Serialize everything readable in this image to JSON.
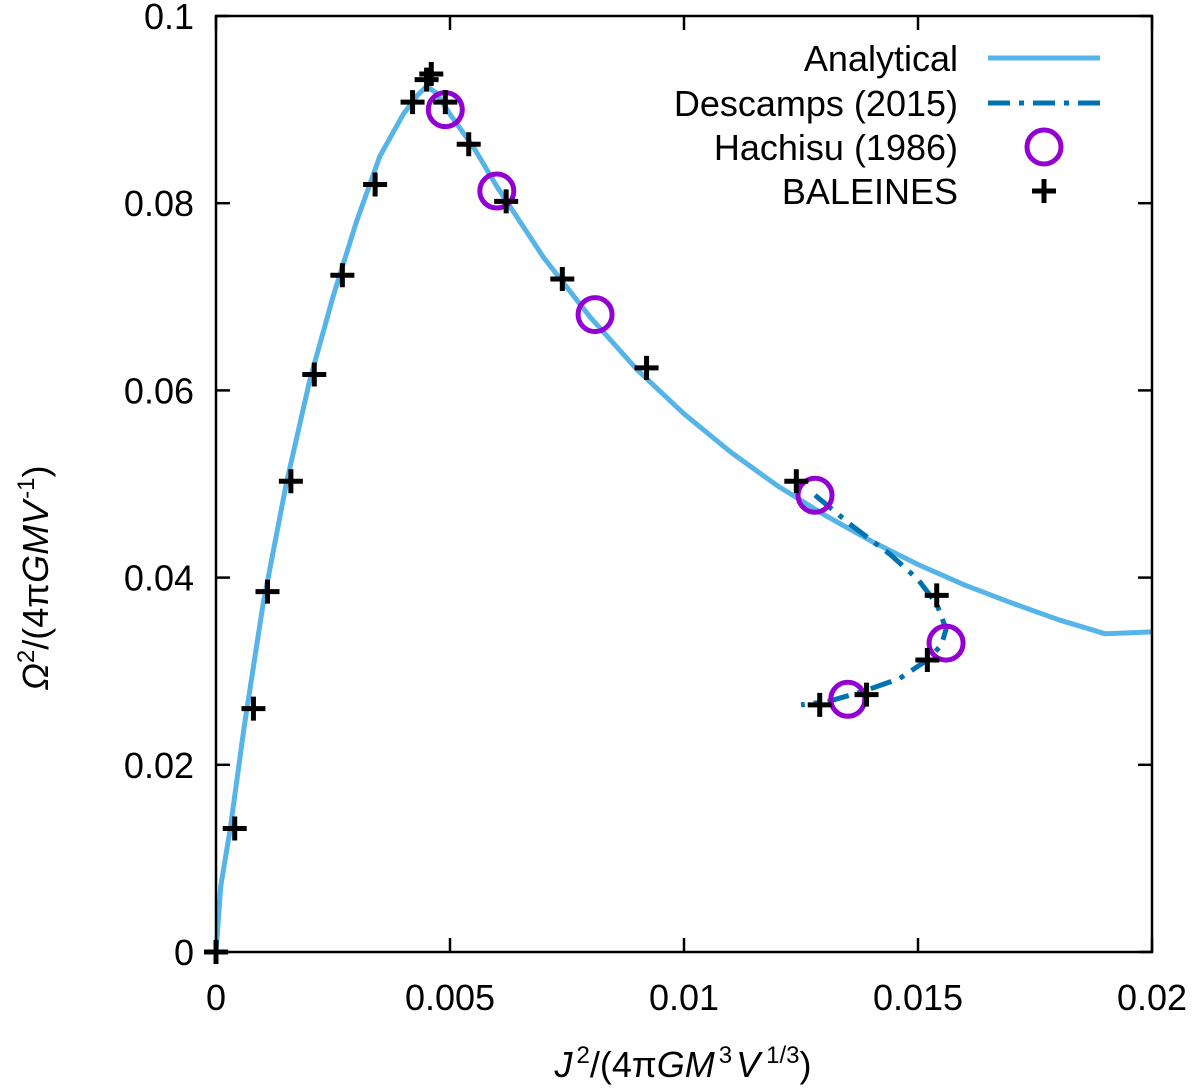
{
  "chart_data": {
    "type": "line",
    "xlabel_parts": [
      "J",
      "2",
      "/(4π",
      "GM",
      "3",
      "V",
      "1/3",
      ")"
    ],
    "ylabel_parts": [
      "Ω",
      "2",
      "/(4π",
      "GMV",
      "-1",
      ")"
    ],
    "xlim": [
      0,
      0.02
    ],
    "ylim": [
      0,
      0.1
    ],
    "xticks": [
      0,
      0.005,
      0.01,
      0.015,
      0.02
    ],
    "xtick_labels": [
      "0",
      "0.005",
      "0.01",
      "0.015",
      "0.02"
    ],
    "yticks": [
      0,
      0.02,
      0.04,
      0.06,
      0.08,
      0.1
    ],
    "ytick_labels": [
      "0",
      "0.02",
      "0.04",
      "0.06",
      "0.08",
      "0.1"
    ],
    "legend_position": "top-right",
    "grid": false,
    "series": [
      {
        "name": "Analytical",
        "style": "solid-line",
        "color": "#56b4e9",
        "x": [
          0,
          0.0001,
          0.0003,
          0.0006,
          0.001,
          0.0015,
          0.002,
          0.0025,
          0.003,
          0.0035,
          0.004,
          0.0043,
          0.0045,
          0.0047,
          0.005,
          0.0055,
          0.006,
          0.007,
          0.008,
          0.009,
          0.01,
          0.011,
          0.012,
          0.013,
          0.014,
          0.015,
          0.016,
          0.017,
          0.018,
          0.019,
          0.02
        ],
        "y": [
          0,
          0.007,
          0.013,
          0.024,
          0.037,
          0.05,
          0.061,
          0.07,
          0.078,
          0.085,
          0.0895,
          0.0915,
          0.0925,
          0.0918,
          0.0895,
          0.086,
          0.0818,
          0.0742,
          0.0678,
          0.0622,
          0.0575,
          0.0534,
          0.0498,
          0.0467,
          0.0439,
          0.0414,
          0.0392,
          0.0373,
          0.0355,
          0.034,
          0.0342
        ]
      },
      {
        "name": "Descamps (2015)",
        "style": "dash-dot-line",
        "color": "#0072b2",
        "x": [
          0.0128,
          0.0136,
          0.0144,
          0.015,
          0.0154,
          0.0156,
          0.0155,
          0.0152,
          0.0146,
          0.0138,
          0.0131,
          0.0125
        ],
        "y": [
          0.0488,
          0.0455,
          0.0425,
          0.0398,
          0.0372,
          0.0345,
          0.0328,
          0.0312,
          0.0292,
          0.0278,
          0.0268,
          0.0264
        ]
      },
      {
        "name": "Hachisu (1986)",
        "style": "circles",
        "color": "#9400d3",
        "x": [
          0.0049,
          0.006,
          0.0081,
          0.0128,
          0.0156,
          0.0135
        ],
        "y": [
          0.09,
          0.0813,
          0.0681,
          0.0488,
          0.033,
          0.027
        ]
      },
      {
        "name": "BALEINES",
        "style": "plus-markers",
        "color": "#000000",
        "x": [
          0,
          0.0004,
          0.0008,
          0.0011,
          0.0016,
          0.0021,
          0.0027,
          0.0034,
          0.0042,
          0.0045,
          0.0046,
          0.0049,
          0.0054,
          0.0062,
          0.0074,
          0.0092,
          0.0124,
          0.0154,
          0.0152,
          0.0139,
          0.0129
        ],
        "y": [
          0,
          0.0132,
          0.026,
          0.0385,
          0.0503,
          0.0617,
          0.0723,
          0.082,
          0.0908,
          0.0932,
          0.0938,
          0.0908,
          0.0863,
          0.0802,
          0.0719,
          0.0624,
          0.0503,
          0.0381,
          0.0312,
          0.0275,
          0.0264
        ]
      }
    ]
  }
}
